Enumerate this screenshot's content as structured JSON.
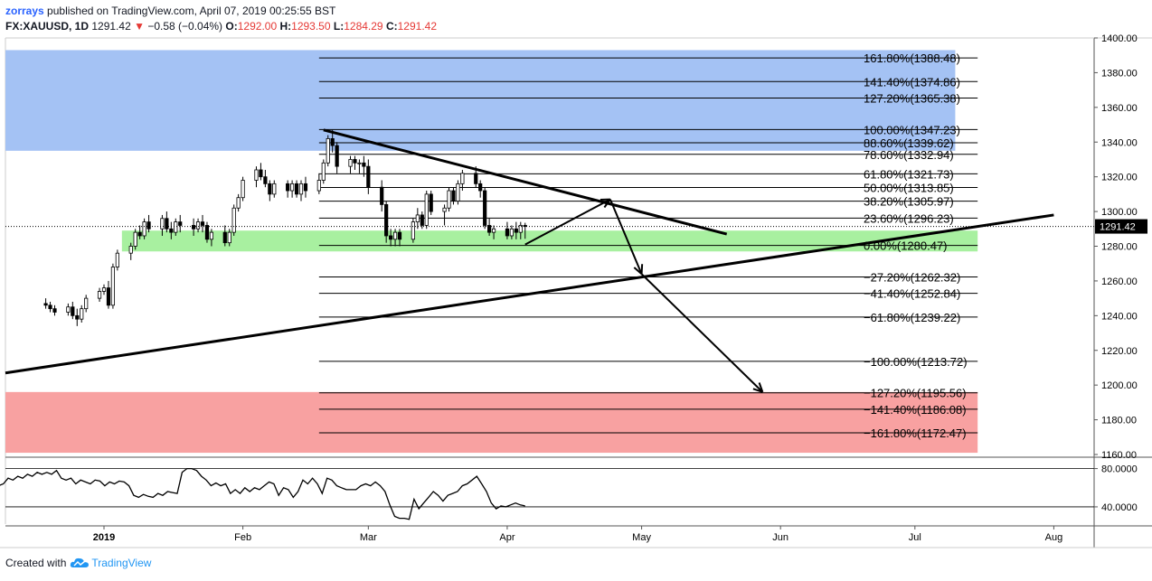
{
  "header": {
    "author": "zorrays",
    "published": "published on TradingView.com, April 07, 2019 00:25:55 BST",
    "symbol": "FX:XAUUSD, 1D",
    "last": "1291.42",
    "change_arrow": "▼",
    "change": "−0.58 (−0.04%)",
    "o_label": "O:",
    "o_value": "1292.00",
    "h_label": "H:",
    "h_value": "1293.50",
    "l_label": "L:",
    "l_value": "1284.29",
    "c_label": "C:",
    "c_value": "1291.42"
  },
  "footer": {
    "created_with": "Created with",
    "brand": "TradingView"
  },
  "colors": {
    "bull": "#ffffff",
    "bear": "#000000",
    "up_zone": "#a4c2f4",
    "green_zone": "#a8f0a0",
    "red_zone": "#f8a1a1",
    "price_tag": "#000000",
    "rsi": "#000000"
  },
  "chart_data": {
    "type": "candlestick",
    "price_axis": {
      "ticks": [
        "1400.00",
        "1380.00",
        "1360.00",
        "1340.00",
        "1320.00",
        "1300.00",
        "1280.00",
        "1260.00",
        "1240.00",
        "1220.00",
        "1200.00",
        "1180.00",
        "1160.00"
      ],
      "last_price_label": "1291.42",
      "range": [
        1160,
        1400
      ]
    },
    "time_axis": {
      "labels": [
        "2019",
        "Feb",
        "Mar",
        "Apr",
        "May",
        "Jun",
        "Jul",
        "Aug"
      ],
      "label_dates": [
        "2019-01-01",
        "2019-02-01",
        "2019-03-01",
        "2019-04-01",
        "2019-05-01",
        "2019-06-01",
        "2019-07-01",
        "2019-08-01"
      ],
      "range": [
        "2018-12-10",
        "2019-08-10"
      ]
    },
    "last_date": "2019-04-05",
    "ohlc": [
      [
        1247,
        1250,
        1244,
        1246
      ],
      [
        1246,
        1248,
        1242,
        1244
      ],
      [
        1244,
        1246,
        1240,
        1242
      ],
      [
        1242,
        1247,
        1240,
        1245
      ],
      [
        1245,
        1248,
        1238,
        1240
      ],
      [
        1240,
        1244,
        1234,
        1238
      ],
      [
        1238,
        1246,
        1236,
        1244
      ],
      [
        1244,
        1252,
        1242,
        1250
      ],
      [
        1250,
        1256,
        1248,
        1254
      ],
      [
        1254,
        1258,
        1252,
        1256
      ],
      [
        1256,
        1260,
        1244,
        1246
      ],
      [
        1246,
        1270,
        1244,
        1268
      ],
      [
        1268,
        1278,
        1266,
        1276
      ],
      [
        1276,
        1282,
        1272,
        1280
      ],
      [
        1280,
        1290,
        1278,
        1288
      ],
      [
        1288,
        1292,
        1284,
        1286
      ],
      [
        1286,
        1296,
        1284,
        1294
      ],
      [
        1294,
        1298,
        1288,
        1290
      ],
      [
        1290,
        1298,
        1286,
        1296
      ],
      [
        1296,
        1300,
        1288,
        1290
      ],
      [
        1290,
        1294,
        1284,
        1288
      ],
      [
        1288,
        1296,
        1286,
        1294
      ],
      [
        1294,
        1298,
        1288,
        1292
      ],
      [
        1292,
        1296,
        1286,
        1290
      ],
      [
        1290,
        1296,
        1288,
        1294
      ],
      [
        1294,
        1298,
        1288,
        1292
      ],
      [
        1292,
        1294,
        1282,
        1284
      ],
      [
        1284,
        1290,
        1280,
        1288
      ],
      [
        1288,
        1292,
        1280,
        1282
      ],
      [
        1282,
        1290,
        1280,
        1288
      ],
      [
        1288,
        1304,
        1286,
        1302
      ],
      [
        1302,
        1310,
        1300,
        1308
      ],
      [
        1308,
        1320,
        1306,
        1318
      ],
      [
        1318,
        1326,
        1314,
        1324
      ],
      [
        1324,
        1328,
        1318,
        1320
      ],
      [
        1320,
        1324,
        1314,
        1316
      ],
      [
        1316,
        1318,
        1306,
        1310
      ],
      [
        1310,
        1318,
        1308,
        1316
      ],
      [
        1316,
        1318,
        1308,
        1312
      ],
      [
        1312,
        1318,
        1308,
        1316
      ],
      [
        1316,
        1318,
        1308,
        1310
      ],
      [
        1310,
        1318,
        1306,
        1316
      ],
      [
        1316,
        1320,
        1308,
        1312
      ],
      [
        1312,
        1322,
        1310,
        1318
      ],
      [
        1318,
        1330,
        1316,
        1328
      ],
      [
        1328,
        1344,
        1326,
        1342
      ],
      [
        1342,
        1347,
        1334,
        1338
      ],
      [
        1338,
        1340,
        1322,
        1326
      ],
      [
        1326,
        1332,
        1322,
        1330
      ],
      [
        1330,
        1332,
        1324,
        1328
      ],
      [
        1328,
        1330,
        1322,
        1328
      ],
      [
        1328,
        1332,
        1320,
        1326
      ],
      [
        1326,
        1330,
        1310,
        1314
      ],
      [
        1314,
        1318,
        1300,
        1304
      ],
      [
        1304,
        1306,
        1282,
        1286
      ],
      [
        1286,
        1290,
        1280,
        1284
      ],
      [
        1284,
        1290,
        1280,
        1288
      ],
      [
        1288,
        1290,
        1280,
        1284
      ],
      [
        1284,
        1296,
        1282,
        1294
      ],
      [
        1294,
        1302,
        1290,
        1298
      ],
      [
        1298,
        1300,
        1290,
        1292
      ],
      [
        1292,
        1312,
        1290,
        1310
      ],
      [
        1310,
        1312,
        1298,
        1300
      ],
      [
        1300,
        1304,
        1292,
        1302
      ],
      [
        1302,
        1314,
        1300,
        1312
      ],
      [
        1312,
        1314,
        1304,
        1306
      ],
      [
        1306,
        1318,
        1304,
        1316
      ],
      [
        1316,
        1324,
        1312,
        1322
      ],
      [
        1322,
        1326,
        1314,
        1316
      ],
      [
        1316,
        1318,
        1308,
        1312
      ],
      [
        1312,
        1314,
        1290,
        1292
      ],
      [
        1292,
        1296,
        1286,
        1288
      ],
      [
        1288,
        1292,
        1284,
        1290
      ],
      [
        1290,
        1294,
        1284,
        1286
      ],
      [
        1286,
        1292,
        1284,
        1290
      ],
      [
        1290,
        1294,
        1284,
        1288
      ],
      [
        1288,
        1294,
        1284,
        1292
      ],
      [
        1292,
        1293.5,
        1284.29,
        1291.42
      ]
    ],
    "fibonacci": {
      "labels": [
        "161.80%(1388.48)",
        "141.40%(1374.86)",
        "127.20%(1365.38)",
        "100.00%(1347.23)",
        "88.60%(1339.62)",
        "78.60%(1332.94)",
        "61.80%(1321.73)",
        "50.00%(1313.85)",
        "38.20%(1305.97)",
        "23.60%(1296.23)",
        "0.00%(1280.47)",
        "−27.20%(1262.32)",
        "−41.40%(1252.84)",
        "−61.80%(1239.22)",
        "−100.00%(1213.72)",
        "−127.20%(1195.56)",
        "−141.40%(1186.08)",
        "−161.80%(1172.47)"
      ],
      "prices": [
        1388.48,
        1374.86,
        1365.38,
        1347.23,
        1339.62,
        1332.94,
        1321.73,
        1313.85,
        1305.97,
        1296.23,
        1280.47,
        1262.32,
        1252.84,
        1239.22,
        1213.72,
        1195.56,
        1186.08,
        1172.47
      ],
      "start_date": "2019-02-18",
      "end_date": "2019-07-15"
    },
    "zones": [
      {
        "name": "upper-target-zone",
        "color": "#a4c2f4",
        "from_date": "2018-12-10",
        "to_date": "2019-07-10",
        "price_top": 1393,
        "price_bottom": 1335
      },
      {
        "name": "support-zone",
        "color": "#a8f0a0",
        "from_date": "2019-01-05",
        "to_date": "2019-07-15",
        "price_top": 1289,
        "price_bottom": 1277
      },
      {
        "name": "lower-target-zone",
        "color": "#f8a1a1",
        "from_date": "2018-12-10",
        "to_date": "2019-07-15",
        "price_top": 1196,
        "price_bottom": 1161
      }
    ],
    "trendlines": [
      {
        "name": "descending-trendline",
        "points": [
          [
            "2019-02-19",
            1347
          ],
          [
            "2019-05-20",
            1287
          ]
        ],
        "width": 3
      },
      {
        "name": "ascending-trendline",
        "points": [
          [
            "2018-12-10",
            1207
          ],
          [
            "2019-08-01",
            1298
          ]
        ],
        "width": 3
      }
    ],
    "projection_path": [
      [
        "2019-04-05",
        1281
      ],
      [
        "2019-04-24",
        1307
      ],
      [
        "2019-05-01",
        1264
      ],
      [
        "2019-05-28",
        1196
      ]
    ],
    "rsi": {
      "ticks": [
        "80.0000",
        "40.0000"
      ],
      "range": [
        22,
        90
      ],
      "values": [
        68,
        66,
        64,
        62,
        58,
        60,
        67,
        64,
        62,
        64,
        70,
        68,
        72,
        70,
        74,
        72,
        76,
        74,
        76,
        74,
        78,
        70,
        68,
        70,
        64,
        68,
        66,
        64,
        68,
        67,
        62,
        66,
        64,
        67,
        66,
        62,
        52,
        50,
        53,
        51,
        50,
        54,
        52,
        56,
        55,
        54,
        76,
        80,
        80,
        78,
        72,
        68,
        62,
        65,
        62,
        64,
        54,
        58,
        54,
        60,
        56,
        60,
        58,
        62,
        66,
        64,
        52,
        60,
        58,
        50,
        56,
        68,
        64,
        70,
        64,
        54,
        70,
        68,
        62,
        60,
        58,
        58,
        58,
        62,
        64,
        62,
        66,
        62,
        56,
        42,
        30,
        28,
        28,
        27,
        48,
        38,
        44,
        50,
        56,
        52,
        46,
        52,
        54,
        56,
        62,
        64,
        68,
        72,
        64,
        56,
        44,
        38,
        41,
        40,
        42,
        44,
        42,
        41
      ]
    }
  }
}
